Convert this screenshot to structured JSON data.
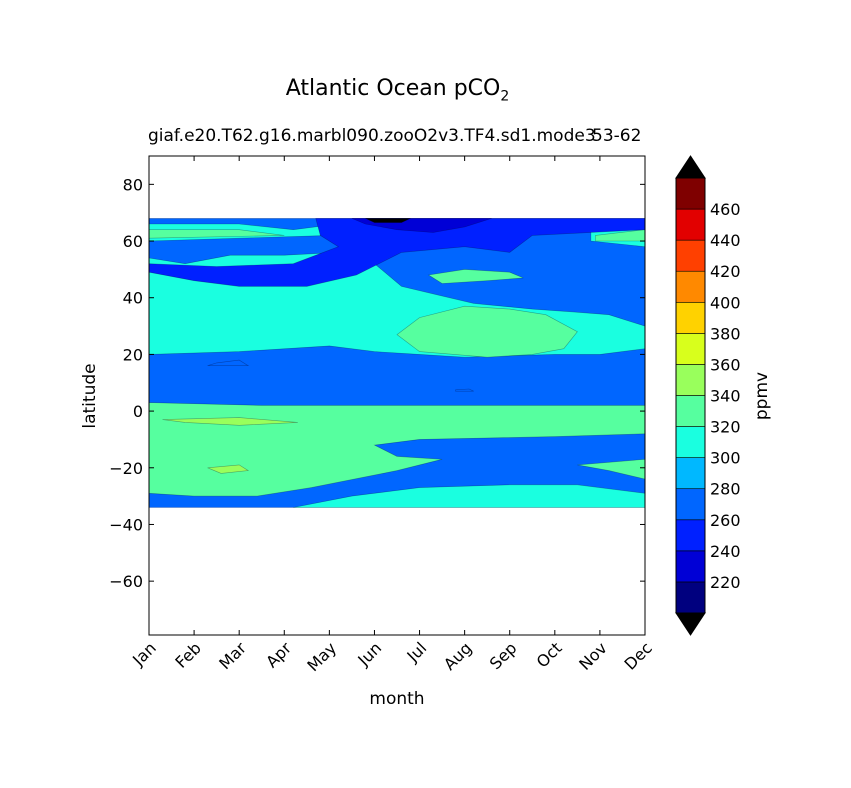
{
  "chart_data": {
    "type": "heatmap",
    "title": "Atlantic Ocean pCO",
    "title_subscript": "2",
    "subtitle": "giaf.e20.T62.g16.marbl090.zooO2v3.TF4.sd1.mode3",
    "subtitle_overlap": "53-62",
    "xlabel": "month",
    "ylabel": "latitude",
    "colorbar_label": "ppmv",
    "x_ticks": [
      "Jan",
      "Feb",
      "Mar",
      "Apr",
      "May",
      "Jun",
      "Jul",
      "Aug",
      "Sep",
      "Oct",
      "Nov",
      "Dec"
    ],
    "y_ticks": [
      80,
      60,
      40,
      20,
      0,
      -20,
      -40,
      -60
    ],
    "y_tick_labels": [
      "80",
      "60",
      "40",
      "20",
      "0",
      "−20",
      "−40",
      "−60"
    ],
    "xlim": [
      0,
      11
    ],
    "ylim": [
      -79,
      90
    ],
    "levels": [
      200,
      220,
      240,
      260,
      280,
      300,
      320,
      340,
      360,
      380,
      400,
      420,
      440,
      460,
      480
    ],
    "colorbar_ticks": [
      220,
      240,
      260,
      280,
      300,
      320,
      340,
      360,
      380,
      400,
      420,
      440,
      460
    ],
    "colors": [
      "#00007f",
      "#0000d6",
      "#0020ff",
      "#0066ff",
      "#00b8ff",
      "#1affe0",
      "#56ff9f",
      "#99ff5c",
      "#d8ff1c",
      "#ffd200",
      "#ff8900",
      "#ff4000",
      "#e20000",
      "#7f0000"
    ],
    "extend_colors": {
      "under": "#000000",
      "over": "#000000"
    },
    "lat_range": [
      -34,
      68
    ],
    "grid": false,
    "regions": [
      {
        "level": 260,
        "points": [
          [
            0,
            68
          ],
          [
            11,
            68
          ],
          [
            11,
            -34
          ],
          [
            0,
            -34
          ]
        ]
      },
      {
        "level": 300,
        "points": [
          [
            0,
            54
          ],
          [
            0.8,
            52
          ],
          [
            1.8,
            55
          ],
          [
            3.0,
            55
          ],
          [
            4.2,
            56
          ],
          [
            5.0,
            52
          ],
          [
            5.6,
            44
          ],
          [
            6.4,
            41
          ],
          [
            7.2,
            38
          ],
          [
            8.5,
            36
          ],
          [
            9.4,
            35
          ],
          [
            10.2,
            34
          ],
          [
            11,
            30
          ],
          [
            11,
            -34
          ],
          [
            3.2,
            -34
          ],
          [
            4.5,
            -30
          ],
          [
            6.0,
            -27
          ],
          [
            8.0,
            -26
          ],
          [
            9.5,
            -26
          ],
          [
            11,
            -29
          ],
          [
            11,
            22
          ],
          [
            10.0,
            20
          ],
          [
            9.0,
            20
          ],
          [
            7.0,
            19
          ],
          [
            6.0,
            20
          ],
          [
            5.0,
            21
          ],
          [
            4.0,
            23
          ],
          [
            2.0,
            21
          ],
          [
            0,
            20
          ]
        ]
      },
      {
        "level": 300,
        "points": [
          [
            0,
            66
          ],
          [
            2.0,
            66
          ],
          [
            3.2,
            64
          ],
          [
            4.2,
            66
          ],
          [
            4.0,
            62
          ],
          [
            2.0,
            61
          ],
          [
            0,
            60
          ]
        ]
      },
      {
        "level": 300,
        "points": [
          [
            9.8,
            64
          ],
          [
            11,
            66
          ],
          [
            11,
            58
          ],
          [
            9.8,
            60
          ]
        ]
      },
      {
        "level": 320,
        "points": [
          [
            0,
            3
          ],
          [
            2.5,
            2
          ],
          [
            4.5,
            2
          ],
          [
            6.0,
            2
          ],
          [
            11,
            2
          ],
          [
            11,
            -8
          ],
          [
            9.0,
            -9
          ],
          [
            6.0,
            -10
          ],
          [
            5.0,
            -12
          ],
          [
            5.5,
            -16
          ],
          [
            6.5,
            -17
          ],
          [
            5.5,
            -21
          ],
          [
            3.6,
            -27
          ],
          [
            2.4,
            -30
          ],
          [
            1.0,
            -30
          ],
          [
            0,
            -29
          ]
        ]
      },
      {
        "level": 320,
        "points": [
          [
            5.5,
            27
          ],
          [
            6.0,
            33
          ],
          [
            7.0,
            37
          ],
          [
            8.0,
            36
          ],
          [
            8.8,
            34
          ],
          [
            9.5,
            28
          ],
          [
            9.2,
            22
          ],
          [
            8.5,
            20
          ],
          [
            7.5,
            19
          ],
          [
            6.0,
            21
          ]
        ]
      },
      {
        "level": 320,
        "points": [
          [
            6.2,
            48
          ],
          [
            7.0,
            50
          ],
          [
            8.0,
            49
          ],
          [
            8.3,
            47
          ],
          [
            7.5,
            46
          ],
          [
            6.5,
            45
          ]
        ]
      },
      {
        "level": 320,
        "points": [
          [
            9.5,
            -19
          ],
          [
            11,
            -17
          ],
          [
            11,
            -24
          ],
          [
            10.2,
            -21
          ]
        ]
      },
      {
        "level": 320,
        "points": [
          [
            0,
            64
          ],
          [
            2.0,
            64
          ],
          [
            3.0,
            62
          ],
          [
            0,
            61
          ]
        ]
      },
      {
        "level": 320,
        "points": [
          [
            9.9,
            62
          ],
          [
            11,
            64
          ],
          [
            11,
            60
          ],
          [
            9.9,
            60
          ]
        ]
      },
      {
        "level": 340,
        "points": [
          [
            0.3,
            -3
          ],
          [
            2,
            -2.3
          ],
          [
            3.3,
            -4
          ],
          [
            2,
            -5
          ],
          [
            0.8,
            -4
          ]
        ]
      },
      {
        "level": 340,
        "points": [
          [
            1.3,
            -20
          ],
          [
            2,
            -19
          ],
          [
            2.2,
            -21
          ],
          [
            1.6,
            -22
          ]
        ]
      },
      {
        "level": 260,
        "points": [
          [
            1.5,
            17
          ],
          [
            2.0,
            18
          ],
          [
            2.2,
            16
          ],
          [
            1.3,
            16
          ]
        ]
      },
      {
        "level": 260,
        "points": [
          [
            6.8,
            7.5
          ],
          [
            7.1,
            7.8
          ],
          [
            7.2,
            7.0
          ],
          [
            6.8,
            7.0
          ]
        ]
      },
      {
        "level": 240,
        "points": [
          [
            3.7,
            68
          ],
          [
            11,
            68
          ],
          [
            11,
            64
          ],
          [
            8.5,
            62
          ],
          [
            8.0,
            56
          ],
          [
            7.0,
            58
          ],
          [
            5.6,
            56
          ],
          [
            4.6,
            48
          ],
          [
            3.5,
            44
          ],
          [
            2.0,
            44
          ],
          [
            1.0,
            46
          ],
          [
            0,
            49
          ],
          [
            0,
            52
          ],
          [
            1.5,
            51
          ],
          [
            3.2,
            52
          ],
          [
            4.2,
            58
          ],
          [
            3.8,
            62
          ]
        ]
      },
      {
        "level": 220,
        "points": [
          [
            4.5,
            68
          ],
          [
            7.6,
            68
          ],
          [
            7.0,
            65
          ],
          [
            6.3,
            63
          ],
          [
            5.5,
            64
          ],
          [
            4.8,
            66
          ]
        ]
      },
      {
        "level": 200,
        "points": [
          [
            4.8,
            68
          ],
          [
            5.8,
            68
          ],
          [
            5.6,
            66.5
          ],
          [
            5.0,
            66.5
          ]
        ]
      }
    ]
  }
}
